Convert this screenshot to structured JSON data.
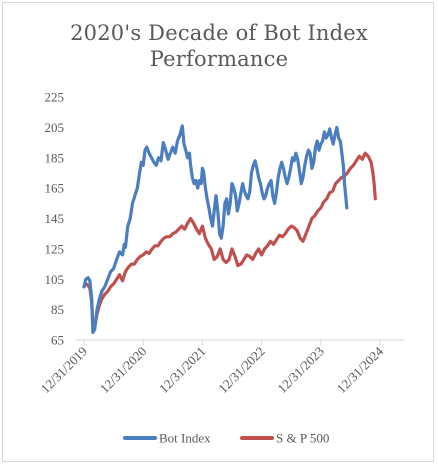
{
  "chart_data": {
    "type": "line",
    "title_line1": "2020's Decade of Bot Index",
    "title_line2": "Performance",
    "xlabel": "",
    "ylabel": "",
    "ylim": [
      65,
      225
    ],
    "y_ticks": [
      65,
      85,
      105,
      125,
      145,
      165,
      185,
      205,
      225
    ],
    "x_tick_labels": [
      "12/31/2019",
      "12/31/2020",
      "12/31/2021",
      "12/31/2022",
      "12/31/2023",
      "12/31/2024"
    ],
    "x_range_years": [
      0,
      5.8
    ],
    "grid": false,
    "legend_position": "bottom",
    "series": [
      {
        "name": "Bot Index",
        "color": "#4a7ebf",
        "points": [
          [
            0.0,
            100
          ],
          [
            0.03,
            105
          ],
          [
            0.07,
            106
          ],
          [
            0.1,
            104
          ],
          [
            0.13,
            92
          ],
          [
            0.15,
            70
          ],
          [
            0.18,
            72
          ],
          [
            0.22,
            85
          ],
          [
            0.26,
            92
          ],
          [
            0.3,
            97
          ],
          [
            0.35,
            100
          ],
          [
            0.4,
            105
          ],
          [
            0.45,
            110
          ],
          [
            0.5,
            112
          ],
          [
            0.55,
            118
          ],
          [
            0.6,
            123
          ],
          [
            0.65,
            121
          ],
          [
            0.68,
            128
          ],
          [
            0.7,
            126
          ],
          [
            0.74,
            140
          ],
          [
            0.78,
            145
          ],
          [
            0.82,
            155
          ],
          [
            0.86,
            160
          ],
          [
            0.9,
            165
          ],
          [
            0.94,
            175
          ],
          [
            0.97,
            182
          ],
          [
            1.0,
            180
          ],
          [
            1.03,
            190
          ],
          [
            1.06,
            192
          ],
          [
            1.1,
            188
          ],
          [
            1.14,
            185
          ],
          [
            1.18,
            182
          ],
          [
            1.22,
            180
          ],
          [
            1.26,
            185
          ],
          [
            1.3,
            183
          ],
          [
            1.34,
            195
          ],
          [
            1.38,
            190
          ],
          [
            1.42,
            184
          ],
          [
            1.46,
            188
          ],
          [
            1.5,
            192
          ],
          [
            1.54,
            188
          ],
          [
            1.58,
            196
          ],
          [
            1.62,
            200
          ],
          [
            1.66,
            206
          ],
          [
            1.69,
            194
          ],
          [
            1.72,
            190
          ],
          [
            1.75,
            185
          ],
          [
            1.78,
            188
          ],
          [
            1.8,
            180
          ],
          [
            1.83,
            172
          ],
          [
            1.86,
            168
          ],
          [
            1.89,
            170
          ],
          [
            1.92,
            165
          ],
          [
            1.95,
            170
          ],
          [
            1.98,
            168
          ],
          [
            2.0,
            178
          ],
          [
            2.02,
            176
          ],
          [
            2.05,
            165
          ],
          [
            2.08,
            158
          ],
          [
            2.11,
            152
          ],
          [
            2.14,
            145
          ],
          [
            2.17,
            140
          ],
          [
            2.2,
            150
          ],
          [
            2.23,
            160
          ],
          [
            2.26,
            150
          ],
          [
            2.29,
            135
          ],
          [
            2.32,
            132
          ],
          [
            2.35,
            140
          ],
          [
            2.38,
            155
          ],
          [
            2.41,
            158
          ],
          [
            2.44,
            148
          ],
          [
            2.47,
            155
          ],
          [
            2.5,
            168
          ],
          [
            2.53,
            165
          ],
          [
            2.56,
            160
          ],
          [
            2.59,
            150
          ],
          [
            2.62,
            155
          ],
          [
            2.65,
            162
          ],
          [
            2.68,
            168
          ],
          [
            2.71,
            163
          ],
          [
            2.74,
            160
          ],
          [
            2.77,
            158
          ],
          [
            2.8,
            163
          ],
          [
            2.83,
            175
          ],
          [
            2.86,
            180
          ],
          [
            2.89,
            183
          ],
          [
            2.92,
            178
          ],
          [
            2.95,
            172
          ],
          [
            2.98,
            168
          ],
          [
            3.01,
            162
          ],
          [
            3.04,
            158
          ],
          [
            3.07,
            160
          ],
          [
            3.1,
            165
          ],
          [
            3.13,
            168
          ],
          [
            3.16,
            170
          ],
          [
            3.19,
            160
          ],
          [
            3.22,
            155
          ],
          [
            3.25,
            162
          ],
          [
            3.28,
            172
          ],
          [
            3.31,
            178
          ],
          [
            3.34,
            182
          ],
          [
            3.37,
            178
          ],
          [
            3.4,
            172
          ],
          [
            3.43,
            168
          ],
          [
            3.46,
            172
          ],
          [
            3.49,
            178
          ],
          [
            3.52,
            185
          ],
          [
            3.55,
            183
          ],
          [
            3.58,
            188
          ],
          [
            3.61,
            184
          ],
          [
            3.64,
            176
          ],
          [
            3.67,
            168
          ],
          [
            3.7,
            172
          ],
          [
            3.73,
            180
          ],
          [
            3.76,
            186
          ],
          [
            3.79,
            190
          ],
          [
            3.82,
            188
          ],
          [
            3.85,
            178
          ],
          [
            3.88,
            182
          ],
          [
            3.91,
            192
          ],
          [
            3.94,
            196
          ],
          [
            3.97,
            190
          ],
          [
            4.0,
            194
          ],
          [
            4.03,
            196
          ],
          [
            4.06,
            202
          ],
          [
            4.09,
            198
          ],
          [
            4.12,
            200
          ],
          [
            4.15,
            204
          ],
          [
            4.18,
            198
          ],
          [
            4.21,
            194
          ],
          [
            4.24,
            200
          ],
          [
            4.27,
            205
          ],
          [
            4.3,
            198
          ],
          [
            4.33,
            196
          ],
          [
            4.35,
            190
          ],
          [
            4.38,
            180
          ],
          [
            4.4,
            168
          ],
          [
            4.42,
            160
          ],
          [
            4.44,
            152
          ]
        ]
      },
      {
        "name": "S & P 500",
        "color": "#c0504d",
        "points": [
          [
            0.0,
            100
          ],
          [
            0.03,
            102
          ],
          [
            0.07,
            101
          ],
          [
            0.1,
            99
          ],
          [
            0.13,
            90
          ],
          [
            0.15,
            75
          ],
          [
            0.18,
            74
          ],
          [
            0.22,
            82
          ],
          [
            0.26,
            88
          ],
          [
            0.3,
            92
          ],
          [
            0.35,
            95
          ],
          [
            0.4,
            97
          ],
          [
            0.45,
            100
          ],
          [
            0.5,
            102
          ],
          [
            0.55,
            105
          ],
          [
            0.6,
            108
          ],
          [
            0.65,
            104
          ],
          [
            0.7,
            110
          ],
          [
            0.75,
            113
          ],
          [
            0.8,
            115
          ],
          [
            0.85,
            115
          ],
          [
            0.9,
            118
          ],
          [
            0.95,
            120
          ],
          [
            1.0,
            121
          ],
          [
            1.05,
            123
          ],
          [
            1.1,
            122
          ],
          [
            1.15,
            125
          ],
          [
            1.2,
            127
          ],
          [
            1.25,
            127
          ],
          [
            1.3,
            130
          ],
          [
            1.35,
            132
          ],
          [
            1.4,
            133
          ],
          [
            1.45,
            133
          ],
          [
            1.5,
            135
          ],
          [
            1.55,
            136
          ],
          [
            1.6,
            138
          ],
          [
            1.65,
            140
          ],
          [
            1.7,
            138
          ],
          [
            1.75,
            142
          ],
          [
            1.8,
            145
          ],
          [
            1.85,
            142
          ],
          [
            1.9,
            138
          ],
          [
            1.95,
            135
          ],
          [
            2.0,
            140
          ],
          [
            2.05,
            132
          ],
          [
            2.1,
            128
          ],
          [
            2.15,
            125
          ],
          [
            2.2,
            118
          ],
          [
            2.25,
            120
          ],
          [
            2.3,
            125
          ],
          [
            2.35,
            118
          ],
          [
            2.4,
            116
          ],
          [
            2.45,
            118
          ],
          [
            2.5,
            125
          ],
          [
            2.55,
            120
          ],
          [
            2.6,
            114
          ],
          [
            2.65,
            115
          ],
          [
            2.7,
            118
          ],
          [
            2.75,
            121
          ],
          [
            2.8,
            120
          ],
          [
            2.85,
            118
          ],
          [
            2.9,
            122
          ],
          [
            2.95,
            125
          ],
          [
            3.0,
            121
          ],
          [
            3.05,
            125
          ],
          [
            3.1,
            127
          ],
          [
            3.15,
            130
          ],
          [
            3.2,
            128
          ],
          [
            3.25,
            131
          ],
          [
            3.3,
            134
          ],
          [
            3.35,
            133
          ],
          [
            3.4,
            135
          ],
          [
            3.45,
            138
          ],
          [
            3.5,
            140
          ],
          [
            3.55,
            139
          ],
          [
            3.6,
            137
          ],
          [
            3.65,
            132
          ],
          [
            3.7,
            130
          ],
          [
            3.75,
            135
          ],
          [
            3.8,
            140
          ],
          [
            3.85,
            145
          ],
          [
            3.9,
            147
          ],
          [
            3.95,
            150
          ],
          [
            4.0,
            152
          ],
          [
            4.05,
            156
          ],
          [
            4.1,
            158
          ],
          [
            4.15,
            162
          ],
          [
            4.2,
            163
          ],
          [
            4.25,
            168
          ],
          [
            4.3,
            170
          ],
          [
            4.35,
            172
          ],
          [
            4.4,
            173
          ],
          [
            4.45,
            175
          ],
          [
            4.5,
            178
          ],
          [
            4.55,
            180
          ],
          [
            4.6,
            183
          ],
          [
            4.65,
            186
          ],
          [
            4.7,
            184
          ],
          [
            4.75,
            188
          ],
          [
            4.8,
            186
          ],
          [
            4.85,
            182
          ],
          [
            4.88,
            175
          ],
          [
            4.9,
            168
          ],
          [
            4.92,
            158
          ]
        ]
      }
    ]
  }
}
